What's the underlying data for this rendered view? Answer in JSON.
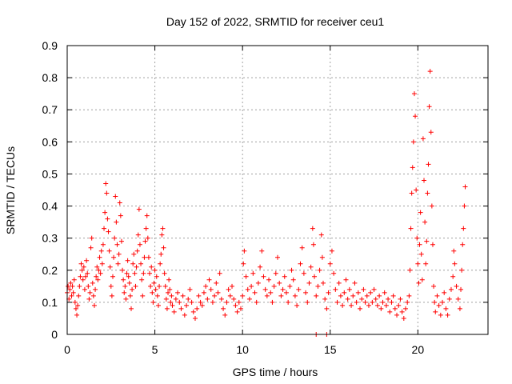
{
  "chart_data": {
    "type": "scatter",
    "title": "Day 152 of 2022, SRMTID for receiver ceu1",
    "xlabel": "GPS time / hours",
    "ylabel": "SRMTID / TECUs",
    "xlim": [
      0,
      24
    ],
    "ylim": [
      0,
      0.9
    ],
    "x_ticks": [
      0,
      5,
      10,
      15,
      20
    ],
    "x_tick_labels": [
      "0",
      "5",
      "10",
      "15",
      "20"
    ],
    "y_ticks": [
      0,
      0.1,
      0.2,
      0.3,
      0.4,
      0.5,
      0.6,
      0.7,
      0.8,
      0.9
    ],
    "y_tick_labels": [
      "0",
      "0.1",
      "0.2",
      "0.3",
      "0.4",
      "0.5",
      "0.6",
      "0.7",
      "0.8",
      "0.9"
    ],
    "grid": true,
    "series": [
      {
        "name": "SRMTID",
        "marker": "plus",
        "color": "#ff0000",
        "points": [
          [
            0.0,
            0.13
          ],
          [
            0.05,
            0.15
          ],
          [
            0.1,
            0.11
          ],
          [
            0.15,
            0.14
          ],
          [
            0.2,
            0.16
          ],
          [
            0.25,
            0.12
          ],
          [
            0.3,
            0.15
          ],
          [
            0.35,
            0.13
          ],
          [
            0.4,
            0.17
          ],
          [
            0.45,
            0.1
          ],
          [
            0.5,
            0.08
          ],
          [
            0.55,
            0.06
          ],
          [
            0.6,
            0.09
          ],
          [
            0.65,
            0.12
          ],
          [
            0.7,
            0.15
          ],
          [
            0.75,
            0.18
          ],
          [
            0.8,
            0.22
          ],
          [
            0.85,
            0.2
          ],
          [
            0.9,
            0.17
          ],
          [
            0.95,
            0.21
          ],
          [
            1.0,
            0.14
          ],
          [
            1.05,
            0.18
          ],
          [
            1.1,
            0.23
          ],
          [
            1.15,
            0.19
          ],
          [
            1.2,
            0.15
          ],
          [
            1.25,
            0.11
          ],
          [
            1.3,
            0.13
          ],
          [
            1.35,
            0.27
          ],
          [
            1.4,
            0.3
          ],
          [
            1.45,
            0.16
          ],
          [
            1.5,
            0.12
          ],
          [
            1.55,
            0.09
          ],
          [
            1.6,
            0.14
          ],
          [
            1.65,
            0.18
          ],
          [
            1.7,
            0.21
          ],
          [
            1.75,
            0.17
          ],
          [
            1.8,
            0.2
          ],
          [
            1.85,
            0.24
          ],
          [
            1.9,
            0.19
          ],
          [
            1.95,
            0.26
          ],
          [
            2.0,
            0.22
          ],
          [
            2.05,
            0.28
          ],
          [
            2.1,
            0.33
          ],
          [
            2.15,
            0.38
          ],
          [
            2.2,
            0.47
          ],
          [
            2.25,
            0.44
          ],
          [
            2.3,
            0.36
          ],
          [
            2.35,
            0.32
          ],
          [
            2.4,
            0.26
          ],
          [
            2.45,
            0.21
          ],
          [
            2.5,
            0.15
          ],
          [
            2.55,
            0.12
          ],
          [
            2.6,
            0.18
          ],
          [
            2.65,
            0.24
          ],
          [
            2.7,
            0.3
          ],
          [
            2.75,
            0.43
          ],
          [
            2.8,
            0.35
          ],
          [
            2.85,
            0.28
          ],
          [
            2.9,
            0.22
          ],
          [
            2.95,
            0.25
          ],
          [
            3.0,
            0.41
          ],
          [
            3.05,
            0.37
          ],
          [
            3.1,
            0.29
          ],
          [
            3.15,
            0.2
          ],
          [
            3.2,
            0.17
          ],
          [
            3.25,
            0.13
          ],
          [
            3.3,
            0.15
          ],
          [
            3.35,
            0.11
          ],
          [
            3.4,
            0.19
          ],
          [
            3.45,
            0.23
          ],
          [
            3.5,
            0.18
          ],
          [
            3.55,
            0.16
          ],
          [
            3.6,
            0.12
          ],
          [
            3.65,
            0.08
          ],
          [
            3.7,
            0.14
          ],
          [
            3.75,
            0.22
          ],
          [
            3.8,
            0.25
          ],
          [
            3.85,
            0.19
          ],
          [
            3.9,
            0.15
          ],
          [
            3.95,
            0.21
          ],
          [
            4.0,
            0.26
          ],
          [
            4.05,
            0.31
          ],
          [
            4.1,
            0.39
          ],
          [
            4.15,
            0.28
          ],
          [
            4.2,
            0.22
          ],
          [
            4.25,
            0.17
          ],
          [
            4.3,
            0.12
          ],
          [
            4.35,
            0.19
          ],
          [
            4.4,
            0.24
          ],
          [
            4.45,
            0.29
          ],
          [
            4.5,
            0.33
          ],
          [
            4.55,
            0.37
          ],
          [
            4.6,
            0.3
          ],
          [
            4.65,
            0.24
          ],
          [
            4.7,
            0.19
          ],
          [
            4.75,
            0.15
          ],
          [
            4.8,
            0.21
          ],
          [
            4.85,
            0.13
          ],
          [
            4.9,
            0.1
          ],
          [
            4.95,
            0.16
          ],
          [
            5.0,
            0.2
          ],
          [
            5.05,
            0.14
          ],
          [
            5.1,
            0.18
          ],
          [
            5.15,
            0.12
          ],
          [
            5.2,
            0.09
          ],
          [
            5.25,
            0.15
          ],
          [
            5.3,
            0.22
          ],
          [
            5.35,
            0.25
          ],
          [
            5.4,
            0.31
          ],
          [
            5.45,
            0.33
          ],
          [
            5.5,
            0.27
          ],
          [
            5.55,
            0.19
          ],
          [
            5.6,
            0.15
          ],
          [
            5.65,
            0.11
          ],
          [
            5.7,
            0.08
          ],
          [
            5.75,
            0.13
          ],
          [
            5.8,
            0.17
          ],
          [
            5.85,
            0.14
          ],
          [
            5.9,
            0.1
          ],
          [
            5.95,
            0.12
          ],
          [
            6.0,
            0.09
          ],
          [
            6.1,
            0.07
          ],
          [
            6.2,
            0.11
          ],
          [
            6.3,
            0.13
          ],
          [
            6.4,
            0.1
          ],
          [
            6.5,
            0.08
          ],
          [
            6.6,
            0.12
          ],
          [
            6.7,
            0.06
          ],
          [
            6.8,
            0.09
          ],
          [
            6.9,
            0.11
          ],
          [
            7.0,
            0.14
          ],
          [
            7.1,
            0.1
          ],
          [
            7.2,
            0.07
          ],
          [
            7.3,
            0.05
          ],
          [
            7.4,
            0.08
          ],
          [
            7.5,
            0.12
          ],
          [
            7.6,
            0.1
          ],
          [
            7.7,
            0.09
          ],
          [
            7.8,
            0.13
          ],
          [
            7.9,
            0.15
          ],
          [
            8.0,
            0.11
          ],
          [
            8.1,
            0.17
          ],
          [
            8.2,
            0.14
          ],
          [
            8.3,
            0.1
          ],
          [
            8.4,
            0.12
          ],
          [
            8.5,
            0.16
          ],
          [
            8.6,
            0.13
          ],
          [
            8.7,
            0.19
          ],
          [
            8.8,
            0.11
          ],
          [
            8.9,
            0.08
          ],
          [
            9.0,
            0.06
          ],
          [
            9.1,
            0.1
          ],
          [
            9.2,
            0.14
          ],
          [
            9.3,
            0.12
          ],
          [
            9.4,
            0.15
          ],
          [
            9.5,
            0.11
          ],
          [
            9.6,
            0.09
          ],
          [
            9.7,
            0.07
          ],
          [
            9.8,
            0.1
          ],
          [
            9.9,
            0.08
          ],
          [
            10.0,
            0.12
          ],
          [
            10.05,
            0.22
          ],
          [
            10.1,
            0.26
          ],
          [
            10.2,
            0.18
          ],
          [
            10.3,
            0.14
          ],
          [
            10.4,
            0.11
          ],
          [
            10.5,
            0.15
          ],
          [
            10.6,
            0.19
          ],
          [
            10.7,
            0.13
          ],
          [
            10.8,
            0.1
          ],
          [
            10.9,
            0.16
          ],
          [
            11.0,
            0.21
          ],
          [
            11.1,
            0.26
          ],
          [
            11.2,
            0.18
          ],
          [
            11.3,
            0.14
          ],
          [
            11.4,
            0.12
          ],
          [
            11.5,
            0.17
          ],
          [
            11.6,
            0.13
          ],
          [
            11.7,
            0.1
          ],
          [
            11.8,
            0.15
          ],
          [
            11.9,
            0.19
          ],
          [
            12.0,
            0.24
          ],
          [
            12.1,
            0.16
          ],
          [
            12.2,
            0.12
          ],
          [
            12.3,
            0.14
          ],
          [
            12.4,
            0.18
          ],
          [
            12.5,
            0.13
          ],
          [
            12.6,
            0.1
          ],
          [
            12.7,
            0.15
          ],
          [
            12.8,
            0.2
          ],
          [
            12.9,
            0.17
          ],
          [
            13.0,
            0.12
          ],
          [
            13.1,
            0.09
          ],
          [
            13.2,
            0.14
          ],
          [
            13.3,
            0.22
          ],
          [
            13.4,
            0.27
          ],
          [
            13.5,
            0.19
          ],
          [
            13.6,
            0.13
          ],
          [
            13.7,
            0.1
          ],
          [
            13.8,
            0.16
          ],
          [
            13.9,
            0.21
          ],
          [
            14.0,
            0.33
          ],
          [
            14.05,
            0.28
          ],
          [
            14.1,
            0.18
          ],
          [
            14.2,
            0.12
          ],
          [
            14.3,
            0.15
          ],
          [
            14.4,
            0.2
          ],
          [
            14.5,
            0.31
          ],
          [
            14.55,
            0.24
          ],
          [
            14.6,
            0.16
          ],
          [
            14.7,
            0.11
          ],
          [
            14.8,
            0.08
          ],
          [
            14.9,
            0.13
          ],
          [
            15.0,
            0.22
          ],
          [
            15.1,
            0.26
          ],
          [
            15.2,
            0.19
          ],
          [
            15.3,
            0.14
          ],
          [
            15.4,
            0.1
          ],
          [
            15.5,
            0.16
          ],
          [
            15.6,
            0.12
          ],
          [
            15.7,
            0.09
          ],
          [
            15.8,
            0.13
          ],
          [
            15.9,
            0.17
          ],
          [
            16.0,
            0.11
          ],
          [
            16.1,
            0.14
          ],
          [
            16.2,
            0.09
          ],
          [
            16.3,
            0.12
          ],
          [
            16.4,
            0.16
          ],
          [
            16.5,
            0.1
          ],
          [
            16.6,
            0.13
          ],
          [
            16.7,
            0.08
          ],
          [
            16.8,
            0.11
          ],
          [
            16.9,
            0.14
          ],
          [
            17.0,
            0.1
          ],
          [
            17.1,
            0.12
          ],
          [
            17.2,
            0.09
          ],
          [
            17.3,
            0.13
          ],
          [
            17.4,
            0.1
          ],
          [
            17.5,
            0.14
          ],
          [
            17.6,
            0.11
          ],
          [
            17.7,
            0.09
          ],
          [
            17.8,
            0.12
          ],
          [
            17.9,
            0.08
          ],
          [
            18.0,
            0.1
          ],
          [
            18.1,
            0.13
          ],
          [
            18.2,
            0.09
          ],
          [
            18.3,
            0.11
          ],
          [
            18.4,
            0.07
          ],
          [
            18.5,
            0.1
          ],
          [
            18.6,
            0.12
          ],
          [
            18.7,
            0.08
          ],
          [
            18.8,
            0.06
          ],
          [
            18.9,
            0.09
          ],
          [
            19.0,
            0.11
          ],
          [
            19.1,
            0.07
          ],
          [
            19.2,
            0.05
          ],
          [
            19.3,
            0.08
          ],
          [
            19.4,
            0.1
          ],
          [
            19.5,
            0.12
          ],
          [
            19.55,
            0.2
          ],
          [
            19.6,
            0.33
          ],
          [
            19.65,
            0.44
          ],
          [
            19.7,
            0.52
          ],
          [
            19.75,
            0.6
          ],
          [
            19.8,
            0.75
          ],
          [
            19.85,
            0.68
          ],
          [
            19.9,
            0.45
          ],
          [
            19.95,
            0.3
          ],
          [
            20.0,
            0.22
          ],
          [
            20.05,
            0.16
          ],
          [
            20.1,
            0.28
          ],
          [
            20.15,
            0.38
          ],
          [
            20.2,
            0.25
          ],
          [
            20.25,
            0.17
          ],
          [
            20.3,
            0.61
          ],
          [
            20.35,
            0.48
          ],
          [
            20.4,
            0.35
          ],
          [
            20.45,
            0.22
          ],
          [
            20.5,
            0.29
          ],
          [
            20.55,
            0.44
          ],
          [
            20.6,
            0.53
          ],
          [
            20.65,
            0.71
          ],
          [
            20.7,
            0.82
          ],
          [
            20.75,
            0.63
          ],
          [
            20.8,
            0.4
          ],
          [
            20.85,
            0.28
          ],
          [
            20.9,
            0.15
          ],
          [
            20.95,
            0.1
          ],
          [
            21.0,
            0.07
          ],
          [
            21.1,
            0.12
          ],
          [
            21.2,
            0.09
          ],
          [
            21.3,
            0.06
          ],
          [
            21.4,
            0.1
          ],
          [
            21.5,
            0.13
          ],
          [
            21.6,
            0.08
          ],
          [
            21.7,
            0.06
          ],
          [
            21.8,
            0.11
          ],
          [
            21.9,
            0.14
          ],
          [
            22.0,
            0.18
          ],
          [
            22.05,
            0.26
          ],
          [
            22.1,
            0.22
          ],
          [
            22.2,
            0.15
          ],
          [
            22.3,
            0.11
          ],
          [
            22.4,
            0.08
          ],
          [
            22.45,
            0.14
          ],
          [
            22.5,
            0.2
          ],
          [
            22.55,
            0.28
          ],
          [
            22.6,
            0.33
          ],
          [
            22.65,
            0.4
          ],
          [
            22.7,
            0.46
          ],
          [
            14.2,
            0.0
          ],
          [
            14.8,
            0.0
          ]
        ]
      }
    ]
  }
}
